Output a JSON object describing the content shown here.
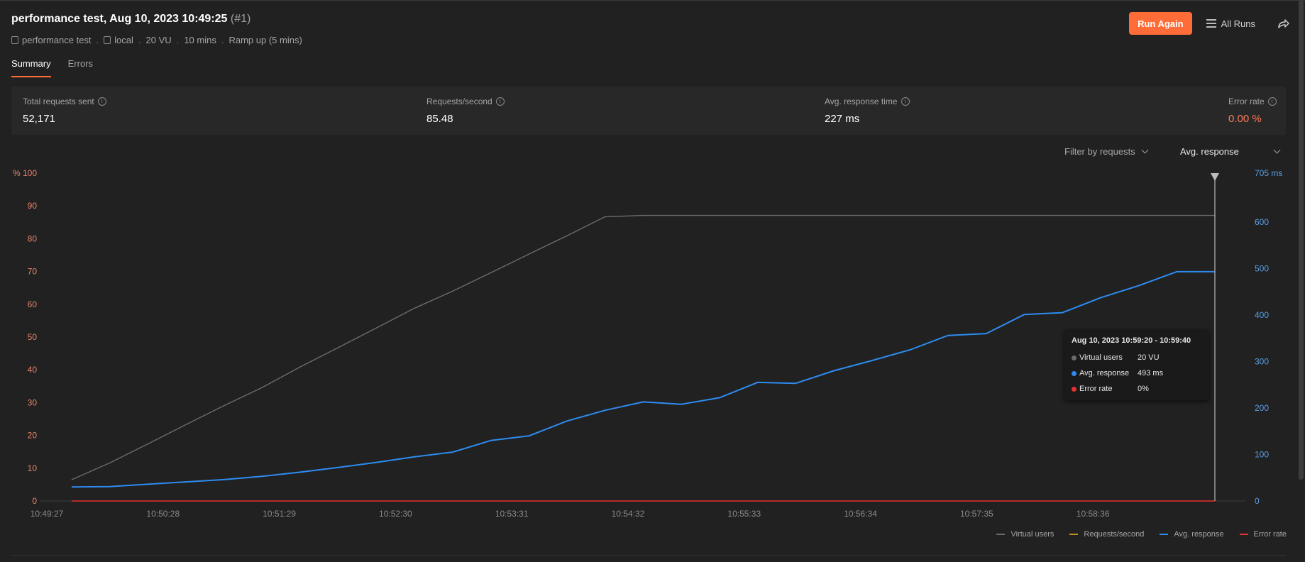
{
  "header": {
    "title": "performance test, Aug 10, 2023 10:49:25",
    "run_number": "(#1)",
    "meta": {
      "collection": "performance test",
      "environment": "local",
      "virtual_users": "20 VU",
      "duration": "10 mins",
      "load_profile": "Ramp up (5 mins)",
      "separator": "."
    },
    "run_again_label": "Run Again",
    "all_runs_label": "All Runs"
  },
  "tabs": [
    {
      "label": "Summary",
      "active": true
    },
    {
      "label": "Errors",
      "active": false
    }
  ],
  "stats": {
    "total_requests": {
      "label": "Total requests sent",
      "value": "52,171"
    },
    "requests_per_second": {
      "label": "Requests/second",
      "value": "85.48"
    },
    "avg_response_time": {
      "label": "Avg. response time",
      "value": "227 ms"
    },
    "error_rate": {
      "label": "Error rate",
      "value": "0.00 %"
    }
  },
  "filters": {
    "requests_label": "Filter by requests",
    "metric_label": "Avg. response"
  },
  "tooltip": {
    "title": "Aug 10, 2023 10:59:20 - 10:59:40",
    "rows": [
      {
        "name": "Virtual users",
        "value": "20 VU",
        "color": "#6b6b6b"
      },
      {
        "name": "Avg. response",
        "value": "493 ms",
        "color": "#2d8cf0"
      },
      {
        "name": "Error rate",
        "value": "0%",
        "color": "#e8312f"
      }
    ]
  },
  "legend": [
    {
      "name": "Virtual users",
      "color": "#6b6b6b"
    },
    {
      "name": "Requests/second",
      "color": "#c49218"
    },
    {
      "name": "Avg. response",
      "color": "#2d8cf0"
    },
    {
      "name": "Error rate",
      "color": "#e8312f"
    }
  ],
  "colors": {
    "accent": "#ff6c37",
    "error_text": "#ff7a59",
    "left_axis": "#e8856a",
    "right_axis": "#5a9fe6"
  },
  "chart_data": {
    "type": "line",
    "left_axis_unit": "%",
    "right_axis_unit": "ms",
    "left_ticks": [
      0,
      10,
      20,
      30,
      40,
      50,
      60,
      70,
      80,
      90,
      100
    ],
    "right_ticks": [
      0,
      100,
      200,
      300,
      400,
      500,
      600,
      705
    ],
    "ylim_left": [
      0,
      100
    ],
    "ylim_right": [
      0,
      705
    ],
    "x_tick_labels": [
      "10:49:27",
      "10:50:28",
      "10:51:29",
      "10:52:30",
      "10:53:31",
      "10:54:32",
      "10:55:33",
      "10:56:34",
      "10:57:35",
      "10:58:36"
    ],
    "x_start": "10:49:27",
    "x_end": "10:59:40",
    "series": [
      {
        "name": "Virtual users",
        "axis": "left",
        "color": "#6b6b6b",
        "x": [
          "10:49:40",
          "10:50:00",
          "10:50:20",
          "10:50:40",
          "10:51:00",
          "10:51:20",
          "10:51:40",
          "10:52:00",
          "10:52:20",
          "10:52:40",
          "10:53:00",
          "10:53:20",
          "10:53:40",
          "10:54:00",
          "10:54:20",
          "10:54:40",
          "10:59:40"
        ],
        "values": [
          6.5,
          11.6,
          17.4,
          23.3,
          29.1,
          34.6,
          40.9,
          46.8,
          52.8,
          58.8,
          64.0,
          69.6,
          75.3,
          80.9,
          86.7,
          87.1,
          87.1
        ]
      },
      {
        "name": "Avg. response",
        "axis": "right",
        "color": "#2d8cf0",
        "x": [
          "10:49:40",
          "10:50:00",
          "10:50:20",
          "10:50:40",
          "10:51:00",
          "10:51:20",
          "10:51:40",
          "10:52:00",
          "10:52:20",
          "10:52:40",
          "10:53:00",
          "10:53:20",
          "10:53:40",
          "10:54:00",
          "10:54:20",
          "10:54:40",
          "10:55:00",
          "10:55:20",
          "10:55:40",
          "10:56:00",
          "10:56:20",
          "10:56:40",
          "10:57:00",
          "10:57:20",
          "10:57:40",
          "10:58:00",
          "10:58:20",
          "10:58:40",
          "10:59:00",
          "10:59:20",
          "10:59:40"
        ],
        "values": [
          30,
          31,
          36,
          41,
          46,
          53,
          62,
          72,
          83,
          95,
          105,
          130,
          140,
          172,
          195,
          213,
          208,
          222,
          255,
          253,
          280,
          302,
          325,
          356,
          360,
          401,
          405,
          437,
          463,
          493,
          493
        ]
      },
      {
        "name": "Error rate",
        "axis": "left",
        "color": "#e8312f",
        "x": [
          "10:49:40",
          "10:59:40"
        ],
        "values": [
          0,
          0
        ]
      }
    ],
    "marker_time": "10:59:40"
  }
}
